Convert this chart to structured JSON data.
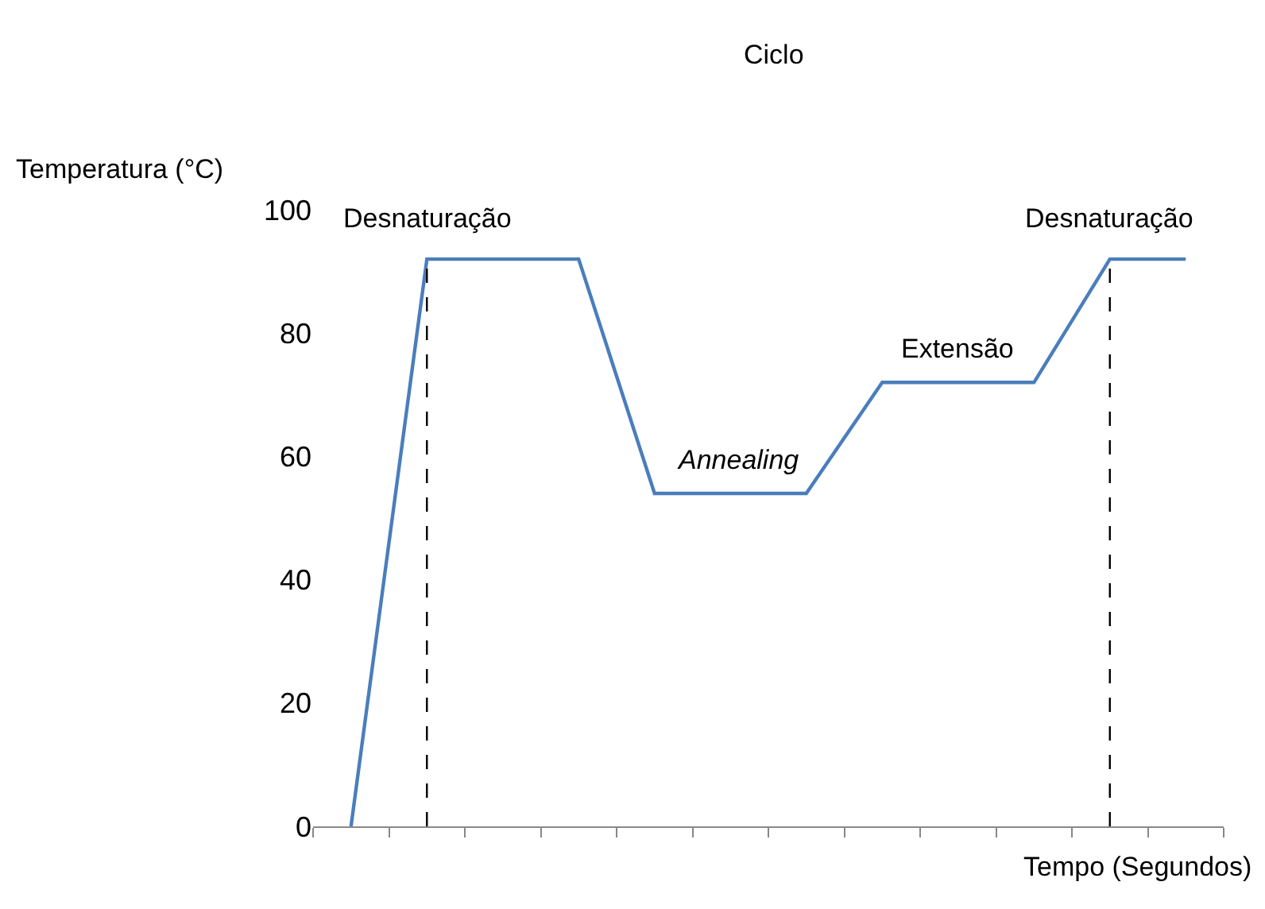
{
  "chart_data": {
    "type": "line",
    "categories": [
      null,
      null,
      null,
      null,
      null,
      null,
      null,
      null,
      null,
      null,
      null,
      null
    ],
    "series": [
      {
        "color": "#4a7ebb",
        "values": [
          0,
          92,
          92,
          92,
          54,
          54,
          54,
          72,
          72,
          72,
          92,
          92
        ]
      }
    ],
    "xlabel": "Tempo (Segundos)",
    "ylabel": "Temperatura (°C)",
    "ylim": [
      0,
      100
    ],
    "yticks": [
      0,
      20,
      40,
      60,
      80,
      100
    ],
    "marker": "none",
    "line_style": "solid",
    "annotations": [
      "Ciclo",
      "Desnaturação",
      "Desnaturação",
      "Annealing",
      "Extensão"
    ]
  }
}
